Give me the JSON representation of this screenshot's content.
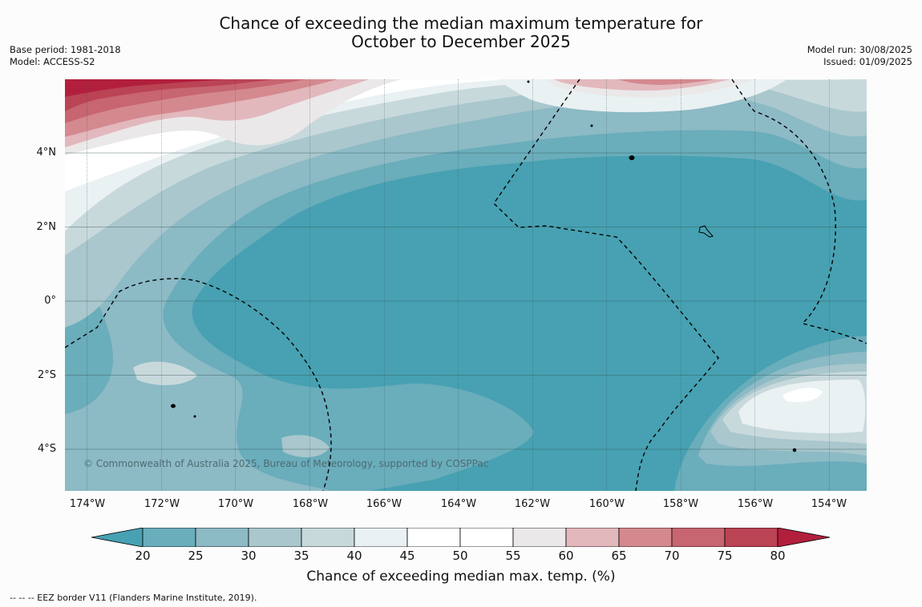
{
  "title": {
    "line1": "Chance of exceeding the median maximum temperature for",
    "line2": "October to December 2025"
  },
  "meta_left": {
    "base_period": "Base period: 1981-2018",
    "model": "Model: ACCESS-S2"
  },
  "meta_right": {
    "model_run": "Model run: 30/08/2025",
    "issued": "Issued: 01/09/2025"
  },
  "map": {
    "lat_labels": [
      "4°N",
      "2°N",
      "0°",
      "2°S",
      "4°S"
    ],
    "lon_labels": [
      "174°W",
      "172°W",
      "170°W",
      "168°W",
      "166°W",
      "164°W",
      "162°W",
      "160°W",
      "158°W",
      "156°W",
      "154°W"
    ],
    "copyright": "© Commonwealth of Australia 2025, Bureau of Meteorology, supported by COSPPac",
    "border_style": "dashed black EEZ border"
  },
  "colorbar": {
    "ticks": [
      "20",
      "25",
      "30",
      "35",
      "40",
      "45",
      "50",
      "55",
      "60",
      "65",
      "70",
      "75",
      "80"
    ],
    "label": "Chance of exceeding median max. temp. (%)",
    "colors": {
      "below_20": "#47a1b2",
      "20_25": "#6aadbb",
      "25_30": "#8cbac5",
      "30_35": "#a9c7cd",
      "35_40": "#c8d9dc",
      "40_45": "#eaf1f2",
      "45_50": "#ffffff",
      "50_55": "#ffffff",
      "55_60": "#ebe8e9",
      "60_65": "#e2b8bd",
      "65_70": "#d4898f",
      "70_75": "#c76570",
      "75_80": "#ba4354",
      "above_80": "#b21f3d"
    }
  },
  "footnote": "-- -- -- EEZ border V11 (Flanders Marine Institute, 2019)."
}
